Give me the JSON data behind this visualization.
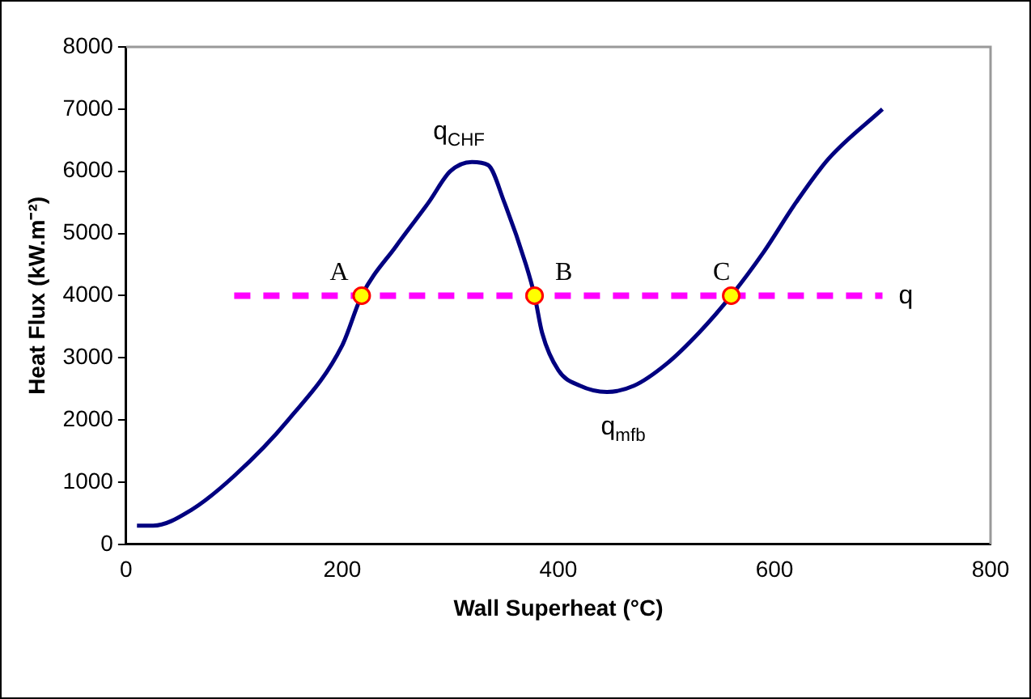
{
  "chart_data": {
    "type": "line",
    "xlabel": "Wall Superheat (°C)",
    "ylabel": "Heat Flux (kW.m⁻²)",
    "xlim": [
      0,
      800
    ],
    "xticks": [
      0,
      200,
      400,
      600,
      800
    ],
    "ylim": [
      0,
      8000
    ],
    "yticks": [
      0,
      1000,
      2000,
      3000,
      4000,
      5000,
      6000,
      7000,
      8000
    ],
    "grid": false,
    "legend": false,
    "series": [
      {
        "color": "#000080",
        "line_style": "solid",
        "marker": "none",
        "x": [
          10,
          25,
          60,
          100,
          150,
          200,
          218,
          250,
          280,
          300,
          320,
          335,
          350,
          370,
          378,
          385,
          400,
          420,
          445,
          470,
          500,
          530,
          560,
          590,
          620,
          650,
          700
        ],
        "values": [
          300,
          300,
          550,
          1100,
          2000,
          3200,
          4000,
          4800,
          5500,
          6000,
          6150,
          6100,
          5500,
          4500,
          4000,
          3400,
          2800,
          2550,
          2450,
          2550,
          2900,
          3400,
          4000,
          4700,
          5500,
          6200,
          7000
        ]
      },
      {
        "type": "line",
        "color": "#ff00ff",
        "line_style": "dashed",
        "marker": "none",
        "x": [
          100,
          700
        ],
        "values": [
          4000,
          4000
        ]
      },
      {
        "type": "scatter",
        "color": "#ffff00",
        "marker": "circle",
        "x": [
          218,
          378,
          560
        ],
        "values": [
          4000,
          4000,
          4000
        ]
      }
    ],
    "annotations": [
      {
        "text": "A",
        "x": 218,
        "y": 4000
      },
      {
        "text": "B",
        "x": 378,
        "y": 4000
      },
      {
        "text": "C",
        "x": 560,
        "y": 4000
      },
      {
        "text": "q$_{CHF}$",
        "x": 320,
        "y": 6150
      },
      {
        "text": "q$_{mfb}$",
        "x": 445,
        "y": 2450
      },
      {
        "text": "q",
        "x": 700,
        "y": 4000
      }
    ]
  }
}
